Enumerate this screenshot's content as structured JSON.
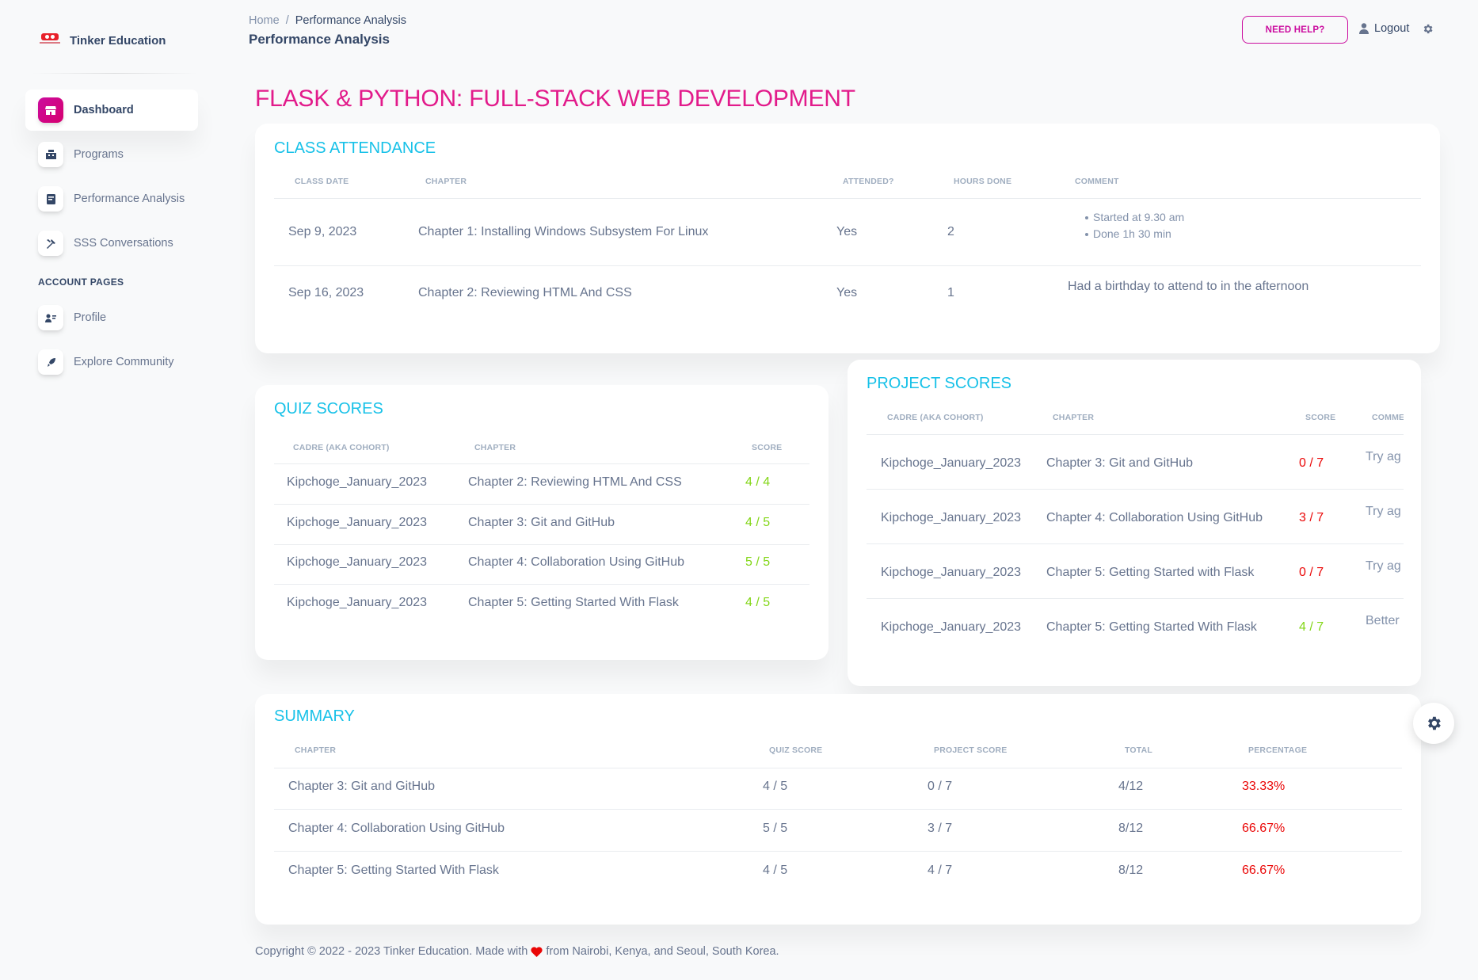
{
  "brand": {
    "name": "Tinker Education",
    "logo_icon": "tinker-logo-icon"
  },
  "sidebar": {
    "items": [
      {
        "label": "Dashboard",
        "icon": "shop-icon",
        "active": true
      },
      {
        "label": "Programs",
        "icon": "office-icon"
      },
      {
        "label": "Performance Analysis",
        "icon": "credit-card-icon"
      },
      {
        "label": "SSS Conversations",
        "icon": "settings-tools-icon"
      }
    ],
    "section_label": "ACCOUNT PAGES",
    "account_items": [
      {
        "label": "Profile",
        "icon": "user-card-icon"
      },
      {
        "label": "Explore Community",
        "icon": "rocket-icon"
      }
    ]
  },
  "header": {
    "breadcrumb": {
      "home": "Home",
      "separator": "/",
      "current": "Performance Analysis"
    },
    "title": "Performance Analysis",
    "help_label": "NEED HELP?",
    "logout_label": "Logout"
  },
  "course_title": "FLASK & PYTHON: FULL-STACK WEB DEVELOPMENT",
  "attendance": {
    "title": "CLASS ATTENDANCE",
    "columns": [
      "CLASS DATE",
      "CHAPTER",
      "ATTENDED?",
      "HOURS DONE",
      "COMMENT"
    ],
    "rows": [
      {
        "date": "Sep 9, 2023",
        "chapter": "Chapter 1: Installing Windows Subsystem For Linux",
        "attended": "Yes",
        "hours": "2",
        "comment_items": [
          "Started at 9.30 am",
          "Done 1h 30 min"
        ]
      },
      {
        "date": "Sep 16, 2023",
        "chapter": "Chapter 2: Reviewing HTML And CSS",
        "attended": "Yes",
        "hours": "1",
        "comment": "Had a birthday to attend to in the afternoon"
      }
    ]
  },
  "quiz": {
    "title": "QUIZ SCORES",
    "columns": [
      "CADRE (AKA COHORT)",
      "CHAPTER",
      "SCORE"
    ],
    "rows": [
      {
        "cadre": "Kipchoge_January_2023",
        "chapter": "Chapter 2: Reviewing HTML And CSS",
        "score": "4 / 4"
      },
      {
        "cadre": "Kipchoge_January_2023",
        "chapter": "Chapter 3: Git and GitHub",
        "score": "4 / 5"
      },
      {
        "cadre": "Kipchoge_January_2023",
        "chapter": "Chapter 4: Collaboration Using GitHub",
        "score": "5 / 5"
      },
      {
        "cadre": "Kipchoge_January_2023",
        "chapter": "Chapter 5: Getting Started With Flask",
        "score": "4 / 5"
      }
    ]
  },
  "project": {
    "title": "PROJECT SCORES",
    "columns": [
      "CADRE (AKA COHORT)",
      "CHAPTER",
      "SCORE",
      "COMME"
    ],
    "rows": [
      {
        "cadre": "Kipchoge_January_2023",
        "chapter": "Chapter 3: Git and GitHub",
        "score": "0 / 7",
        "comment": "Try ag"
      },
      {
        "cadre": "Kipchoge_January_2023",
        "chapter": "Chapter 4: Collaboration Using GitHub",
        "score": "3 / 7",
        "comment": "Try ag"
      },
      {
        "cadre": "Kipchoge_January_2023",
        "chapter": "Chapter 5: Getting Started with Flask",
        "score": "0 / 7",
        "comment": "Try ag"
      },
      {
        "cadre": "Kipchoge_January_2023",
        "chapter": "Chapter 5: Getting Started With Flask",
        "score": "4 / 7",
        "comment": "Better"
      }
    ]
  },
  "summary": {
    "title": "SUMMARY",
    "columns": [
      "CHAPTER",
      "QUIZ SCORE",
      "PROJECT SCORE",
      "TOTAL",
      "PERCENTAGE"
    ],
    "rows": [
      {
        "chapter": "Chapter 3: Git and GitHub",
        "quiz": "4 / 5",
        "project": "0 / 7",
        "total": "4/12",
        "percentage": "33.33%"
      },
      {
        "chapter": "Chapter 4: Collaboration Using GitHub",
        "quiz": "5 / 5",
        "project": "3 / 7",
        "total": "8/12",
        "percentage": "66.67%"
      },
      {
        "chapter": "Chapter 5: Getting Started With Flask",
        "quiz": "4 / 5",
        "project": "4 / 7",
        "total": "8/12",
        "percentage": "66.67%"
      }
    ]
  },
  "footer": {
    "prefix": "Copyright © 2022 - 2023 Tinker Education. Made with",
    "suffix": "from Nairobi, Kenya, and Seoul, South Korea.",
    "heart_icon": "heart-icon"
  },
  "colors": {
    "accent": "#cb0c9f",
    "title_pink": "#e21b8b",
    "card_title": "#17c1e8",
    "success": "#82d616",
    "danger": "#ea0606"
  }
}
